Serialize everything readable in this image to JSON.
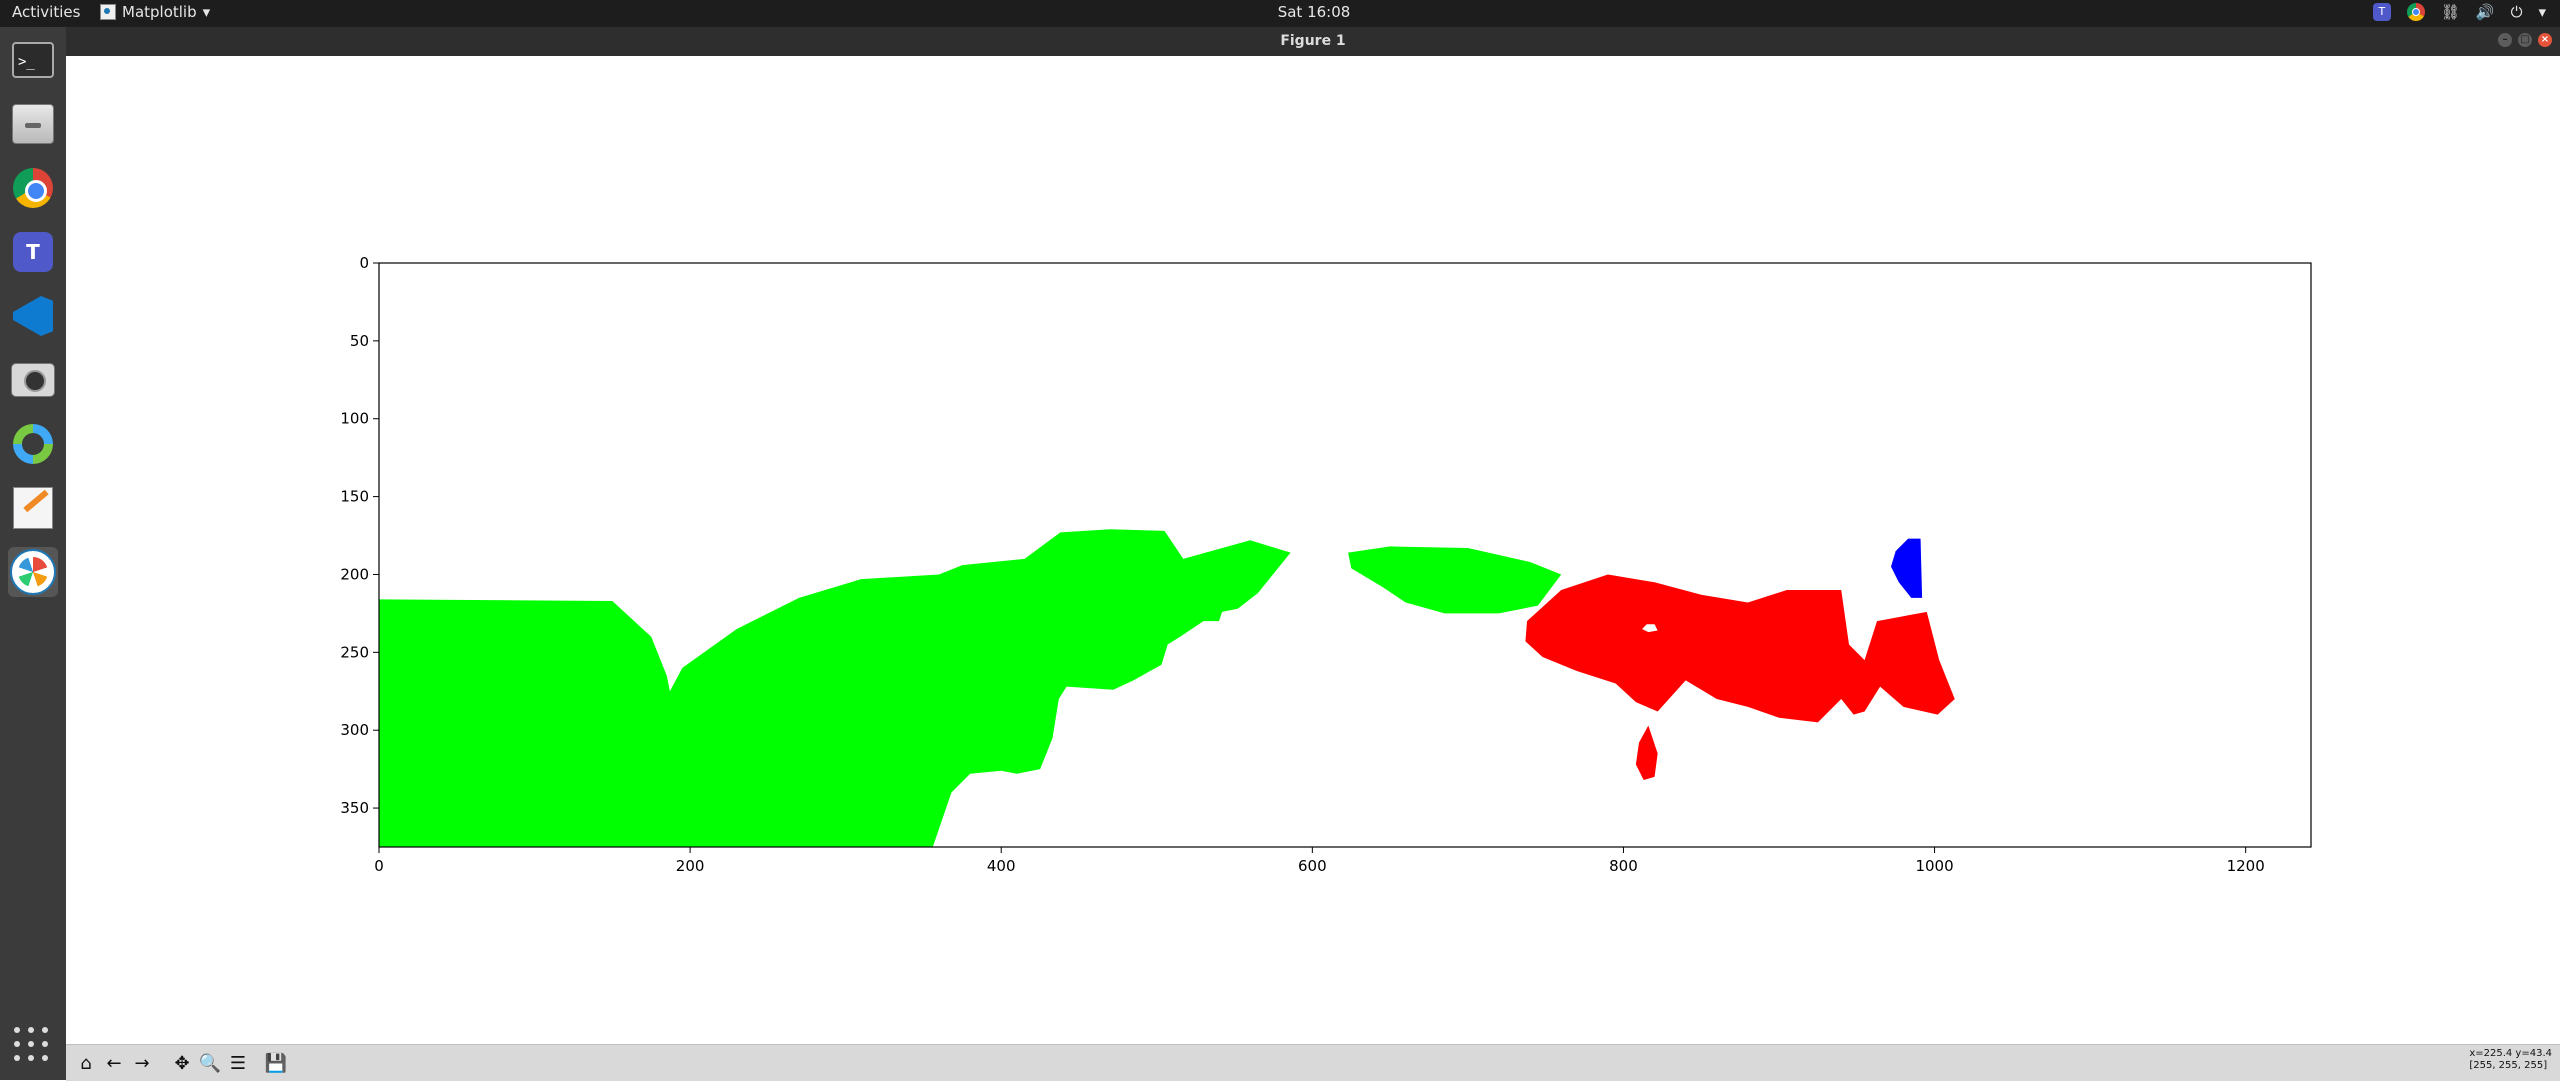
{
  "topbar": {
    "activities": "Activities",
    "app_name": "Matplotlib",
    "app_menu_arrow": "▾",
    "clock": "Sat 16:08",
    "tray_arrow": "▾"
  },
  "dock": {
    "items": [
      "terminal",
      "files",
      "chrome",
      "teams",
      "vscode",
      "screenshot",
      "ring-app",
      "text-editor",
      "matplotlib"
    ]
  },
  "window": {
    "title": "Figure 1"
  },
  "toolbar": {
    "coords_line1": "x=225.4 y=43.4",
    "coords_line2": "[255, 255, 255]"
  },
  "chart_data": {
    "type": "image",
    "xlim": [
      0,
      1242
    ],
    "ylim": [
      375,
      0
    ],
    "x_ticks": [
      0,
      200,
      400,
      600,
      800,
      1000,
      1200
    ],
    "y_ticks": [
      0,
      50,
      100,
      150,
      200,
      250,
      300,
      350
    ],
    "regions": [
      {
        "color": "#00ff00",
        "points": [
          [
            0,
            216
          ],
          [
            150,
            217
          ],
          [
            175,
            240
          ],
          [
            185,
            265
          ],
          [
            187,
            275
          ],
          [
            195,
            260
          ],
          [
            230,
            235
          ],
          [
            270,
            215
          ],
          [
            310,
            203
          ],
          [
            360,
            200
          ],
          [
            375,
            194
          ],
          [
            415,
            190
          ],
          [
            438,
            173
          ],
          [
            470,
            171
          ],
          [
            505,
            172
          ],
          [
            517,
            190
          ],
          [
            560,
            178
          ],
          [
            586,
            186
          ],
          [
            565,
            212
          ],
          [
            552,
            222
          ],
          [
            542,
            224
          ],
          [
            540,
            230
          ],
          [
            530,
            230
          ],
          [
            515,
            240
          ],
          [
            507,
            245
          ],
          [
            503,
            258
          ],
          [
            485,
            268
          ],
          [
            472,
            274
          ],
          [
            442,
            272
          ],
          [
            437,
            280
          ],
          [
            433,
            305
          ],
          [
            425,
            325
          ],
          [
            410,
            328
          ],
          [
            400,
            326
          ],
          [
            380,
            328
          ],
          [
            368,
            340
          ],
          [
            356,
            375
          ],
          [
            0,
            375
          ]
        ]
      },
      {
        "color": "#00ff00",
        "points": [
          [
            623,
            186
          ],
          [
            650,
            182
          ],
          [
            700,
            183
          ],
          [
            740,
            192
          ],
          [
            760,
            200
          ],
          [
            745,
            220
          ],
          [
            720,
            225
          ],
          [
            685,
            225
          ],
          [
            660,
            218
          ],
          [
            645,
            208
          ],
          [
            625,
            196
          ]
        ]
      },
      {
        "color": "#ff0000",
        "points": [
          [
            738,
            230
          ],
          [
            760,
            210
          ],
          [
            790,
            200
          ],
          [
            820,
            205
          ],
          [
            850,
            213
          ],
          [
            880,
            218
          ],
          [
            905,
            210
          ],
          [
            940,
            210
          ],
          [
            945,
            245
          ],
          [
            955,
            255
          ],
          [
            963,
            230
          ],
          [
            995,
            224
          ],
          [
            1003,
            255
          ],
          [
            1013,
            280
          ],
          [
            1002,
            290
          ],
          [
            980,
            285
          ],
          [
            965,
            272
          ],
          [
            955,
            288
          ],
          [
            948,
            290
          ],
          [
            940,
            280
          ],
          [
            925,
            295
          ],
          [
            900,
            292
          ],
          [
            880,
            285
          ],
          [
            860,
            280
          ],
          [
            840,
            268
          ],
          [
            822,
            288
          ],
          [
            808,
            282
          ],
          [
            795,
            270
          ],
          [
            770,
            262
          ],
          [
            748,
            253
          ],
          [
            737,
            243
          ]
        ]
      },
      {
        "color": "#ff0000",
        "points": [
          [
            816,
            297
          ],
          [
            822,
            315
          ],
          [
            820,
            330
          ],
          [
            813,
            332
          ],
          [
            808,
            322
          ],
          [
            810,
            308
          ]
        ]
      },
      {
        "color": "#ffffff",
        "points": [
          [
            815,
            232
          ],
          [
            820,
            232
          ],
          [
            822,
            236
          ],
          [
            816,
            237
          ],
          [
            812,
            235
          ]
        ]
      },
      {
        "color": "#0000ff",
        "points": [
          [
            983,
            177
          ],
          [
            991,
            177
          ],
          [
            992,
            215
          ],
          [
            985,
            215
          ],
          [
            977,
            205
          ],
          [
            972,
            195
          ],
          [
            975,
            185
          ]
        ]
      }
    ]
  }
}
